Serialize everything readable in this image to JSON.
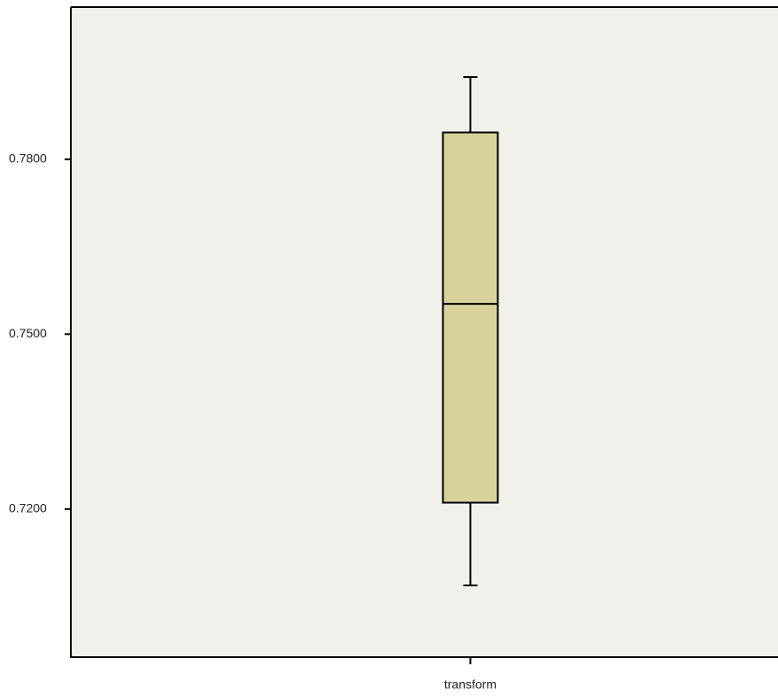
{
  "chart_data": {
    "type": "box",
    "categories": [
      "transform"
    ],
    "whisker_low": [
      0.7069
    ],
    "q1": [
      0.7211
    ],
    "median": [
      0.7552
    ],
    "q3": [
      0.7846
    ],
    "whisker_high": [
      0.7941
    ],
    "color": "#d6d29a",
    "ylim": [
      0.6946,
      0.8061
    ],
    "yticks": [
      {
        "value": 0.72,
        "label": "0.7200"
      },
      {
        "value": 0.75,
        "label": "0.7500"
      },
      {
        "value": 0.78,
        "label": "0.7800"
      }
    ],
    "grid": false
  }
}
